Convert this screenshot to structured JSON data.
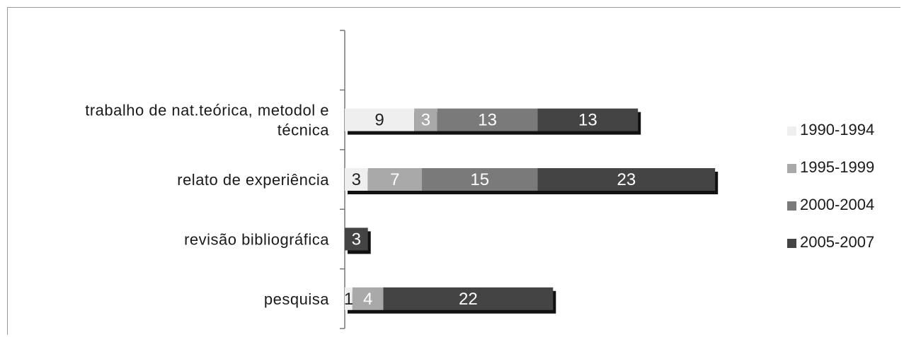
{
  "chart_data": {
    "type": "bar",
    "orientation": "horizontal",
    "stacked": true,
    "categories": [
      "trabalho de nat.teórica, metodol e técnica",
      "relato de experiência",
      "revisão bibliográfica",
      "pesquisa"
    ],
    "category_lines": [
      [
        "trabalho de nat.teórica, metodol e",
        "técnica"
      ],
      [
        "relato de experiência"
      ],
      [
        "revisão bibliográfica"
      ],
      [
        "pesquisa"
      ]
    ],
    "series": [
      {
        "name": "1990-1994",
        "color": "#efefef",
        "text_color": "#222222",
        "values": [
          9,
          3,
          0,
          1
        ]
      },
      {
        "name": "1995-1999",
        "color": "#a9a9a9",
        "text_color": "#ffffff",
        "values": [
          3,
          7,
          0,
          4
        ]
      },
      {
        "name": "2000-2004",
        "color": "#7a7a7a",
        "text_color": "#ffffff",
        "values": [
          13,
          15,
          0,
          0
        ]
      },
      {
        "name": "2005-2007",
        "color": "#444444",
        "text_color": "#ffffff",
        "values": [
          13,
          23,
          3,
          22
        ]
      }
    ],
    "xlim": [
      0,
      55
    ],
    "legend_position": "right",
    "grid": false,
    "data_labels": true
  }
}
